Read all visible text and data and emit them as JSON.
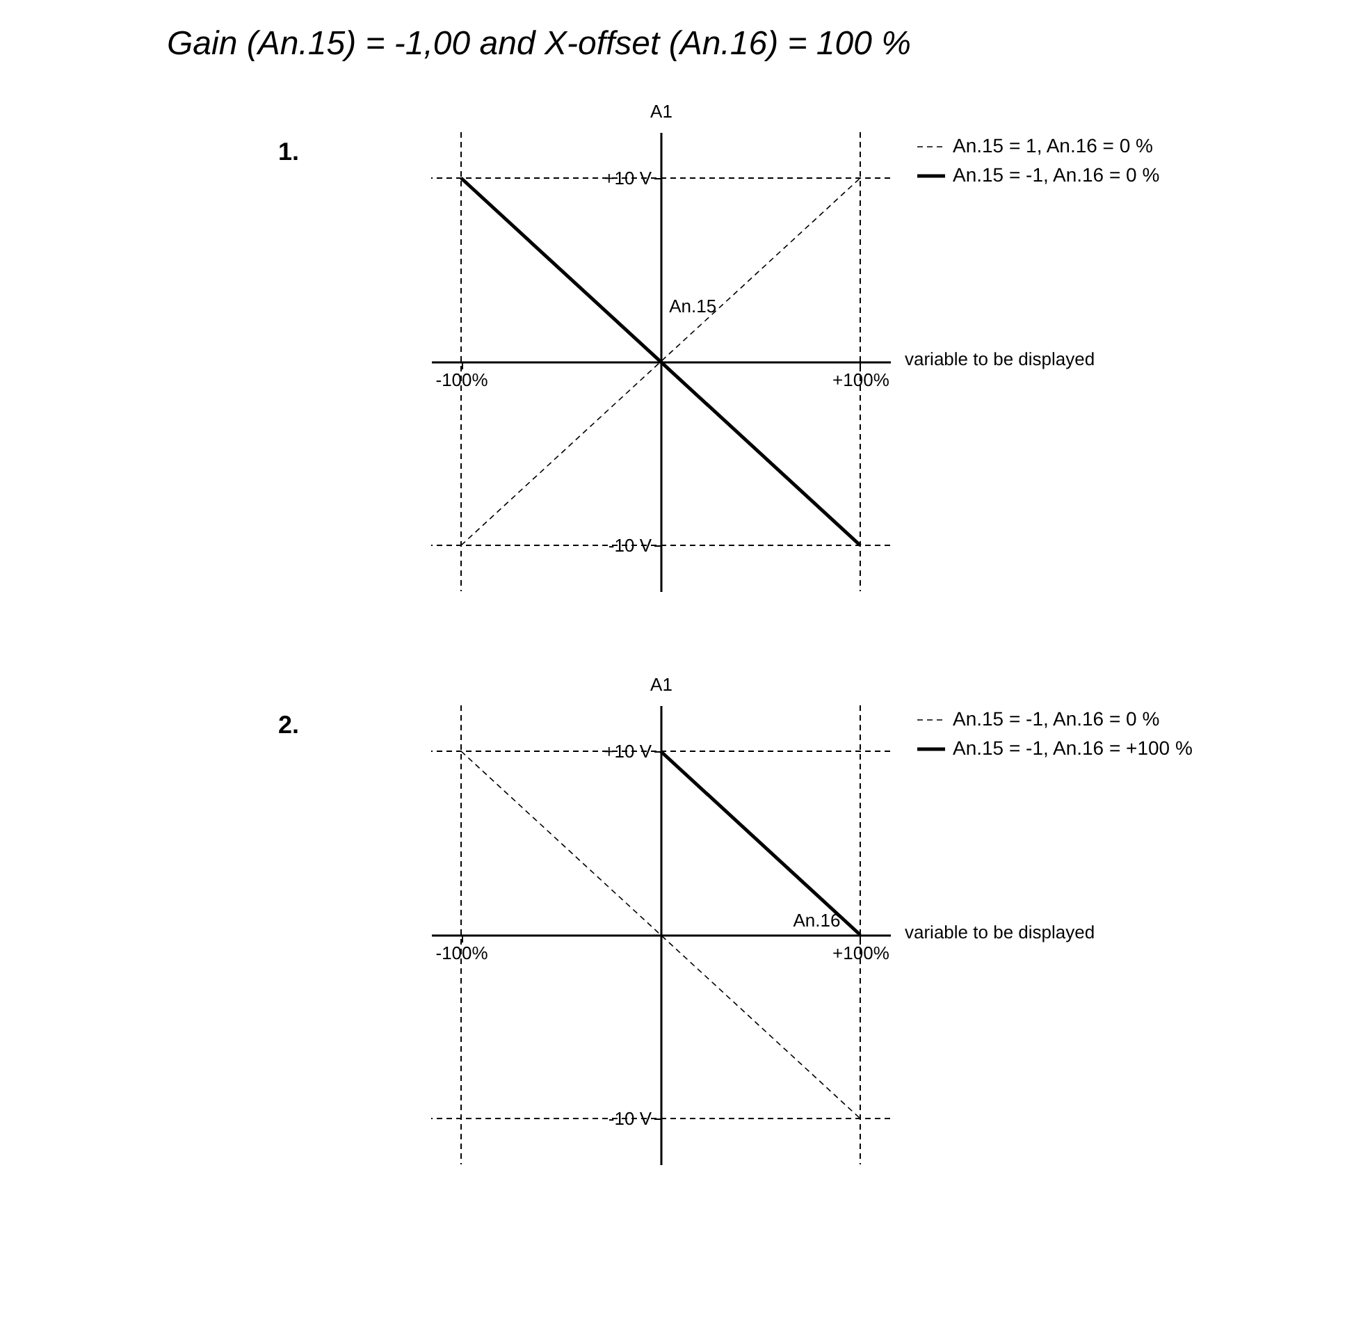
{
  "chart_data": [
    {
      "type": "line",
      "title": "Gain (An.15) = -1,00 and X-offset (An.16) = 100 %",
      "xlabel": "variable to be displayed",
      "ylabel": "A1",
      "xlim": [
        -115,
        115
      ],
      "ylim": [
        -12.5,
        12.5
      ],
      "xticks": [
        {
          "value": -100,
          "label": "-100%"
        },
        {
          "value": 100,
          "label": "+100%"
        }
      ],
      "yticks": [
        {
          "value": -10,
          "label": "-10 V"
        },
        {
          "value": 10,
          "label": "+10 V"
        }
      ],
      "x": [
        -100,
        100
      ],
      "series": [
        {
          "name": "An.15 = 1, An.16 = 0 %",
          "color": "#000000",
          "line_style": "dashed",
          "values": [
            -10,
            10
          ]
        },
        {
          "name": "An.15 = -1, An.16 = 0 %",
          "color": "#000000",
          "line_style": "solid",
          "values": [
            10,
            -10
          ]
        }
      ],
      "ref_lines": [
        {
          "axis": "x",
          "value": -100,
          "line_style": "dashed",
          "color": "#000000"
        },
        {
          "axis": "x",
          "value": 100,
          "line_style": "dashed",
          "color": "#000000"
        },
        {
          "axis": "y",
          "value": -10,
          "line_style": "dashed",
          "color": "#000000"
        },
        {
          "axis": "y",
          "value": 10,
          "line_style": "dashed",
          "color": "#000000"
        }
      ],
      "annotations": [
        "1.",
        "An.15"
      ],
      "legend": "right",
      "grid": false,
      "marker": "none"
    },
    {
      "type": "line",
      "xlabel": "variable to be displayed",
      "ylabel": "A1",
      "xlim": [
        -115,
        115
      ],
      "ylim": [
        -12.5,
        12.5
      ],
      "xticks": [
        {
          "value": -100,
          "label": "-100%"
        },
        {
          "value": 100,
          "label": "+100%"
        }
      ],
      "yticks": [
        {
          "value": -10,
          "label": "-10 V"
        },
        {
          "value": 10,
          "label": "+10 V"
        }
      ],
      "series": [
        {
          "name": "An.15 = -1, An.16 = 0 %",
          "color": "#000000",
          "line_style": "dashed",
          "x": [
            -100,
            100
          ],
          "values": [
            10,
            -10
          ]
        },
        {
          "name": "An.15 = -1, An.16 = +100 %",
          "color": "#000000",
          "line_style": "solid",
          "x": [
            0,
            100
          ],
          "values": [
            10,
            0
          ]
        }
      ],
      "ref_lines": [
        {
          "axis": "x",
          "value": -100,
          "line_style": "dashed",
          "color": "#000000"
        },
        {
          "axis": "x",
          "value": 100,
          "line_style": "dashed",
          "color": "#000000"
        },
        {
          "axis": "y",
          "value": -10,
          "line_style": "dashed",
          "color": "#000000"
        },
        {
          "axis": "y",
          "value": 10,
          "line_style": "dashed",
          "color": "#000000"
        }
      ],
      "annotations": [
        "2.",
        "An.16"
      ],
      "legend": "right",
      "grid": false,
      "marker": "none"
    }
  ]
}
